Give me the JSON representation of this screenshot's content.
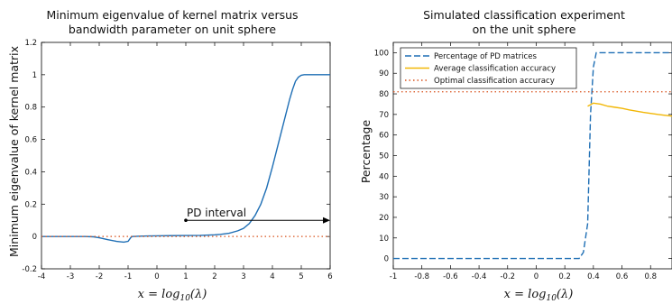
{
  "chart_data": [
    {
      "type": "line",
      "title": [
        "Minimum eigenvalue of kernel matrix versus",
        "bandwidth parameter on unit sphere"
      ],
      "xlabel": "x = log10(λ)",
      "ylabel": "Minimum eigenvalue of kernel matrix",
      "xlim": [
        -4,
        6
      ],
      "ylim": [
        -0.2,
        1.2
      ],
      "xticks": [
        "-4",
        "-3",
        "-2",
        "-1",
        "0",
        "1",
        "2",
        "3",
        "4",
        "5",
        "6"
      ],
      "yticks": [
        "-0.2",
        "0",
        "0.2",
        "0.4",
        "0.6",
        "0.8",
        "1",
        "1.2"
      ],
      "grid": false,
      "series": [
        {
          "style": "solid",
          "color": "#1f6fb5",
          "x": [
            -4,
            -3,
            -2.5,
            -2.2,
            -2.0,
            -1.7,
            -1.4,
            -1.15,
            -1.0,
            -0.9,
            -0.85,
            -0.6,
            -0.3,
            0,
            0.5,
            1,
            1.5,
            2,
            2.2,
            2.5,
            2.8,
            3.0,
            3.2,
            3.4,
            3.6,
            3.8,
            4.0,
            4.2,
            4.4,
            4.6,
            4.7,
            4.8,
            4.9,
            5.0,
            5.1,
            5.2,
            6
          ],
          "y": [
            0,
            0,
            0,
            -0.002,
            -0.008,
            -0.02,
            -0.03,
            -0.035,
            -0.03,
            -0.005,
            0,
            0.002,
            0.003,
            0.004,
            0.005,
            0.006,
            0.007,
            0.01,
            0.013,
            0.02,
            0.035,
            0.05,
            0.08,
            0.13,
            0.2,
            0.3,
            0.43,
            0.57,
            0.71,
            0.85,
            0.91,
            0.96,
            0.985,
            0.997,
            1.0,
            1.0,
            1.0
          ]
        },
        {
          "style": "dotted",
          "color": "#d9531e",
          "x": [
            -4,
            6
          ],
          "y": [
            0,
            0
          ]
        }
      ],
      "annotations": [
        {
          "text": "PD interval",
          "x_start": 1,
          "x_end": 6,
          "y": 0.1
        }
      ]
    },
    {
      "type": "line",
      "title": [
        "Simulated classification experiment",
        "on the unit sphere"
      ],
      "xlabel": "x = log10(λ)",
      "ylabel": "Percentage",
      "xlim": [
        -1,
        0.95
      ],
      "ylim": [
        -5,
        105
      ],
      "xticks": [
        "-1",
        "-0.8",
        "-0.6",
        "-0.4",
        "-0.2",
        "0",
        "0.2",
        "0.4",
        "0.6",
        "0.8"
      ],
      "yticks": [
        "0",
        "10",
        "20",
        "30",
        "40",
        "50",
        "60",
        "70",
        "80",
        "90",
        "100"
      ],
      "grid": false,
      "legend_position": "top-left",
      "series": [
        {
          "name": "Percentage of PD matrices",
          "style": "dashed",
          "color": "#1f6fb5",
          "x": [
            -1,
            0.3,
            0.33,
            0.36,
            0.38,
            0.4,
            0.42,
            0.95
          ],
          "y": [
            0,
            0,
            3,
            17,
            70,
            93,
            100,
            100
          ]
        },
        {
          "name": "Average classification accuracy",
          "style": "solid",
          "color": "#f2b705",
          "x": [
            0.36,
            0.4,
            0.45,
            0.5,
            0.55,
            0.6,
            0.65,
            0.7,
            0.75,
            0.8,
            0.85,
            0.9,
            0.95
          ],
          "y": [
            74,
            75.5,
            75,
            74,
            73.5,
            73,
            72.2,
            71.6,
            71,
            70.5,
            70,
            69.6,
            69.2
          ]
        },
        {
          "name": "Optimal classification accuracy",
          "style": "dotted",
          "color": "#d9531e",
          "x": [
            -1,
            0.95
          ],
          "y": [
            81,
            81
          ]
        }
      ]
    }
  ]
}
